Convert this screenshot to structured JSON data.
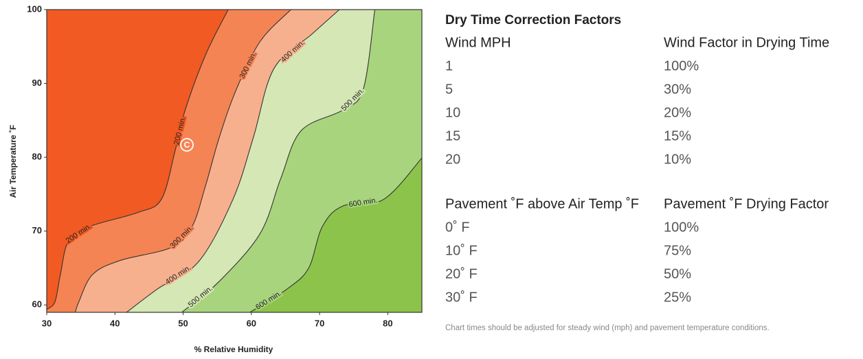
{
  "chart_data": {
    "type": "contour",
    "xlabel": "% Relative Humidity",
    "ylabel": "Air Temperature ˚F",
    "xlim": [
      30,
      85
    ],
    "ylim": [
      59,
      100
    ],
    "xticks": [
      30,
      40,
      50,
      60,
      70,
      80
    ],
    "yticks": [
      60,
      70,
      80,
      90,
      100
    ],
    "color": "#8cc34a",
    "series": [
      {
        "name": "200 min.",
        "color": "#f15a22",
        "x": [
          56.6,
          53.3,
          50.3,
          48.8,
          46.8,
          43.3,
          36.2,
          33.2,
          32,
          31.2,
          30
        ],
        "y": [
          100,
          93.9,
          86.4,
          80.8,
          74.3,
          72.5,
          70.6,
          68.7,
          64.1,
          60.4,
          59.4
        ]
      },
      {
        "name": "300 min.",
        "color": "#f58454",
        "x": [
          65.8,
          61.3,
          57.8,
          55.3,
          53.3,
          51.3,
          48.3,
          40.7,
          36.7,
          34.7,
          34.2
        ],
        "y": [
          100,
          95.7,
          89.2,
          82.7,
          76.2,
          70.6,
          67.8,
          66,
          64.1,
          60.4,
          59
        ]
      },
      {
        "name": "400 min.",
        "color": "#f7b08e",
        "x": [
          72.9,
          68.9,
          63.3,
          60.3,
          57.3,
          52.3,
          46.3,
          41.7
        ],
        "y": [
          100,
          96.7,
          92,
          82.7,
          74.3,
          65.9,
          62.2,
          59
        ]
      },
      {
        "name": "500 min.",
        "color": "#d4e7b4",
        "x": [
          78.1,
          76.4,
          73.4,
          67.3,
          64.3,
          61.3,
          55.3,
          49.8
        ],
        "y": [
          100,
          89.2,
          86.4,
          83.6,
          77.1,
          69.7,
          63.2,
          59
        ]
      },
      {
        "name": "600 min.",
        "color": "#a9d47e",
        "x": [
          85,
          79.4,
          73.4,
          70.4,
          68.4,
          65.3,
          59.8
        ],
        "y": [
          79.9,
          74.3,
          73.4,
          70.6,
          65,
          62.2,
          59
        ]
      }
    ],
    "annotations": [
      {
        "text": "C"
      }
    ]
  },
  "correction": {
    "title": "Dry Time Correction Factors",
    "tables": [
      {
        "header": [
          "Wind MPH",
          "Wind Factor in Drying Time"
        ],
        "rows": [
          [
            "1",
            "100%"
          ],
          [
            "5",
            "30%"
          ],
          [
            "10",
            "20%"
          ],
          [
            "15",
            "15%"
          ],
          [
            "20",
            "10%"
          ]
        ]
      },
      {
        "header": [
          "Pavement ˚F above Air Temp ˚F",
          "Pavement ˚F Drying Factor"
        ],
        "rows": [
          [
            "0˚ F",
            "100%"
          ],
          [
            "10˚ F",
            "75%"
          ],
          [
            "20˚ F",
            "50%"
          ],
          [
            "30˚ F",
            "25%"
          ]
        ]
      }
    ],
    "note": "Chart times should be adjusted for steady wind (mph) and pavement temperature conditions."
  }
}
